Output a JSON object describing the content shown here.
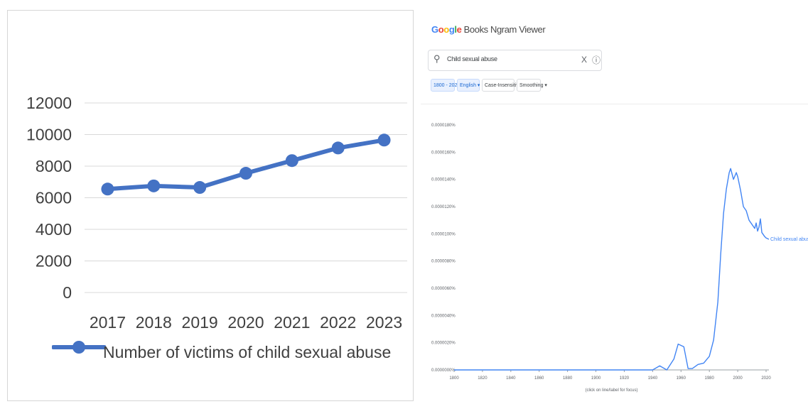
{
  "chart_data": [
    {
      "type": "line",
      "categories": [
        "2017",
        "2018",
        "2019",
        "2020",
        "2021",
        "2022",
        "2023"
      ],
      "series": [
        {
          "name": "Number of victims of child sexual abuse",
          "values": [
            6550,
            6750,
            6650,
            7550,
            8350,
            9150,
            9650
          ],
          "color": "#4472c4"
        }
      ],
      "title": "",
      "xlabel": "",
      "ylabel": "",
      "ylim": [
        0,
        12000
      ],
      "yticks": [
        "0",
        "2000",
        "4000",
        "6000",
        "8000",
        "10000",
        "12000"
      ],
      "grid": true,
      "legend_position": "bottom"
    },
    {
      "type": "line",
      "app": {
        "logo": "Google",
        "name": "Books Ngram Viewer",
        "search_value": "Child sexual abuse",
        "clear_label": "X",
        "help_label": "?",
        "controls": [
          "1800 - 2022",
          "English",
          "Case-Insensitive",
          "Smoothing"
        ]
      },
      "xticks": [
        "1800",
        "1820",
        "1840",
        "1860",
        "1880",
        "1900",
        "1920",
        "1940",
        "1960",
        "1980",
        "2000",
        "2020"
      ],
      "yticks": [
        "0.0000000%",
        "0.0000020%",
        "0.0000040%",
        "0.0000060%",
        "0.0000080%",
        "0.0000100%",
        "0.0000120%",
        "0.0000140%",
        "0.0000160%",
        "0.0000180%"
      ],
      "xlabel": "(click on line/label for focus)",
      "xlim": [
        1800,
        2022
      ],
      "ylim": [
        0,
        1.8e-05
      ],
      "series": [
        {
          "name": "Child sexual abuse",
          "color": "#4285f4",
          "points": [
            [
              1800,
              0
            ],
            [
              1900,
              0
            ],
            [
              1940,
              0
            ],
            [
              1945,
              3e-07
            ],
            [
              1950,
              0
            ],
            [
              1955,
              8e-07
            ],
            [
              1958,
              1.9e-06
            ],
            [
              1962,
              1.7e-06
            ],
            [
              1965,
              1e-07
            ],
            [
              1968,
              1e-07
            ],
            [
              1972,
              4e-07
            ],
            [
              1976,
              5e-07
            ],
            [
              1980,
              1e-06
            ],
            [
              1983,
              2.2e-06
            ],
            [
              1986,
              5e-06
            ],
            [
              1988,
              8.5e-06
            ],
            [
              1990,
              1.15e-05
            ],
            [
              1992,
              1.33e-05
            ],
            [
              1994,
              1.45e-05
            ],
            [
              1995,
              1.48e-05
            ],
            [
              1997,
              1.4e-05
            ],
            [
              1999,
              1.45e-05
            ],
            [
              2000,
              1.42e-05
            ],
            [
              2002,
              1.32e-05
            ],
            [
              2004,
              1.2e-05
            ],
            [
              2006,
              1.17e-05
            ],
            [
              2008,
              1.1e-05
            ],
            [
              2010,
              1.07e-05
            ],
            [
              2012,
              1.04e-05
            ],
            [
              2013,
              1.08e-05
            ],
            [
              2014,
              1.02e-05
            ],
            [
              2015,
              1.05e-05
            ],
            [
              2016,
              1.11e-05
            ],
            [
              2017,
              1.01e-05
            ],
            [
              2019,
              9.8e-06
            ],
            [
              2020,
              9.7e-06
            ],
            [
              2022,
              9.6e-06
            ]
          ]
        }
      ],
      "grid": false,
      "legend_position": "inline-end"
    }
  ]
}
